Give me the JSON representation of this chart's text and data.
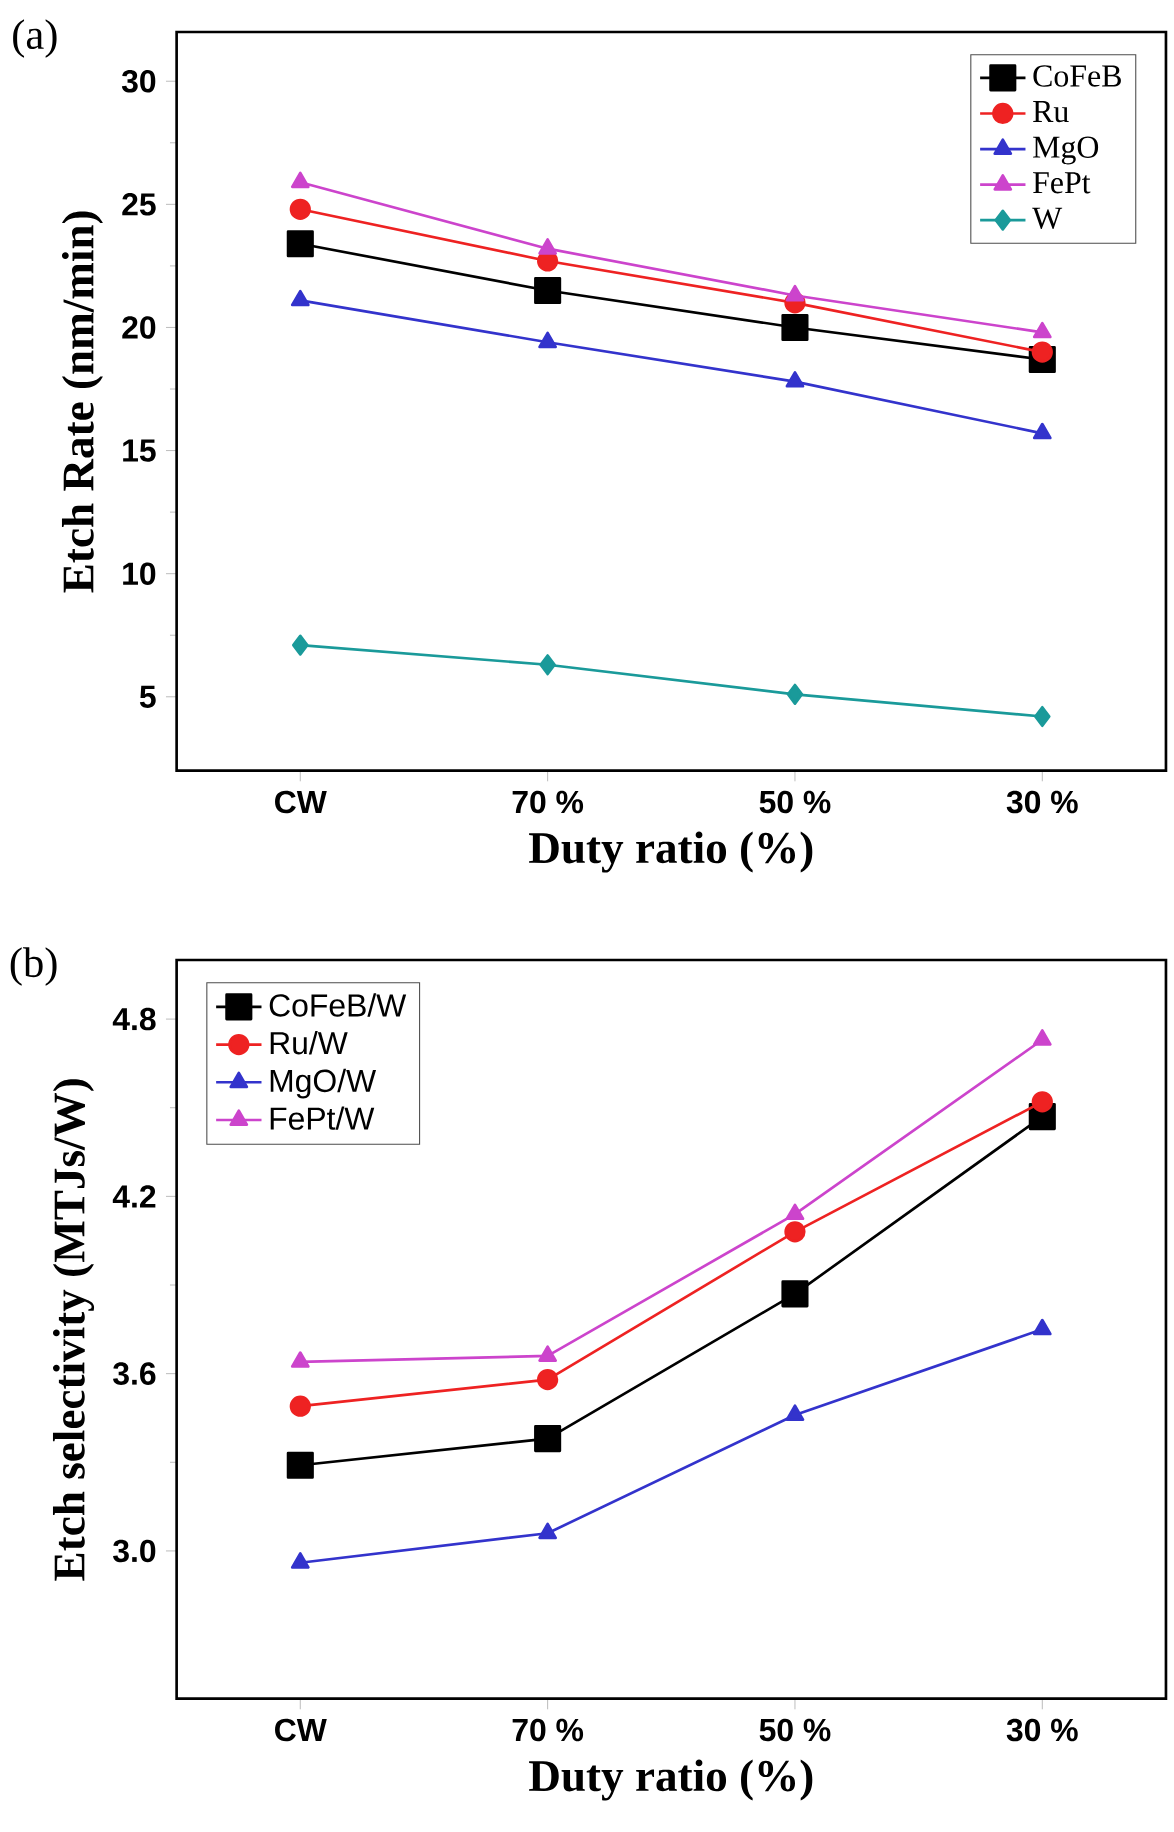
{
  "chart_data": [
    {
      "type": "line",
      "annotations": [
        "(a)"
      ],
      "xlabel": "Duty ratio (%)",
      "ylabel": "Etch Rate (nm/min)",
      "categories": [
        "CW",
        "70 %",
        "50 %",
        "30 %"
      ],
      "ylim": [
        2,
        32
      ],
      "yticks": [
        5,
        10,
        15,
        20,
        25,
        30
      ],
      "legend": "top right",
      "line_style": "solid",
      "series": [
        {
          "name": "CoFeB",
          "color": "#000000",
          "marker": "square",
          "values": [
            23.4,
            21.5,
            20.0,
            18.7
          ]
        },
        {
          "name": "Ru",
          "color": "#ee2222",
          "marker": "circle",
          "values": [
            24.8,
            22.7,
            21.0,
            19.0
          ]
        },
        {
          "name": "MgO",
          "color": "#3333cc",
          "marker": "triangle",
          "values": [
            21.1,
            19.4,
            17.8,
            15.7
          ]
        },
        {
          "name": "FePt",
          "color": "#cc44cc",
          "marker": "triangle",
          "values": [
            25.9,
            23.2,
            21.3,
            19.8
          ]
        },
        {
          "name": "W",
          "color": "#1a9a9a",
          "marker": "diamond",
          "values": [
            7.1,
            6.3,
            5.1,
            4.2
          ]
        }
      ]
    },
    {
      "type": "line",
      "annotations": [
        "(b)"
      ],
      "xlabel": "Duty ratio (%)",
      "ylabel": "Etch selectivity (MTJs/W)",
      "categories": [
        "CW",
        "70 %",
        "50 %",
        "30 %"
      ],
      "ylim": [
        2.5,
        5.0
      ],
      "yticks": [
        {
          "value": 3.0,
          "label": "3.0"
        },
        {
          "value": 3.6,
          "label": "3.6"
        },
        {
          "value": 4.2,
          "label": "4.2"
        },
        {
          "value": 4.8,
          "label": "4.8"
        }
      ],
      "legend": "top left",
      "line_style": "solid",
      "series": [
        {
          "name": "CoFeB/W",
          "color": "#000000",
          "marker": "square",
          "values": [
            3.29,
            3.38,
            3.87,
            4.47
          ]
        },
        {
          "name": "Ru/W",
          "color": "#ee2222",
          "marker": "circle",
          "values": [
            3.49,
            3.58,
            4.08,
            4.52
          ]
        },
        {
          "name": "MgO/W",
          "color": "#3333cc",
          "marker": "triangle",
          "values": [
            2.96,
            3.06,
            3.46,
            3.75
          ]
        },
        {
          "name": "FePt/W",
          "color": "#cc44cc",
          "marker": "triangle",
          "values": [
            3.64,
            3.66,
            4.14,
            4.73
          ]
        }
      ]
    }
  ]
}
